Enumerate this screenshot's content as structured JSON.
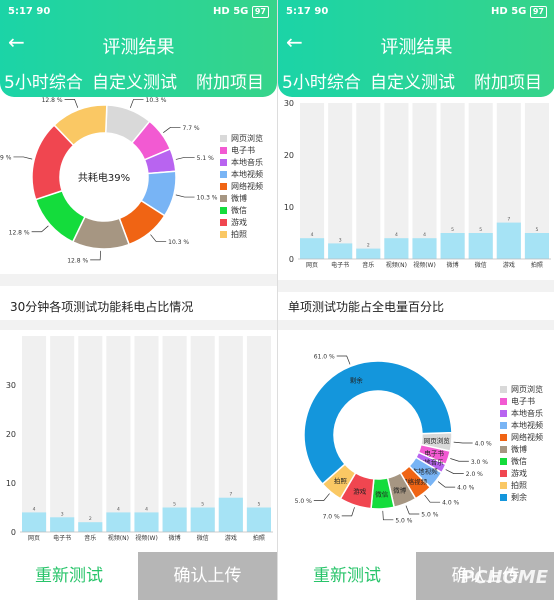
{
  "status": {
    "time": "5:17",
    "network": "90",
    "hd": "HD",
    "signal": "5G",
    "battery": "97"
  },
  "header": {
    "back_icon": "arrow-left-icon",
    "title": "评测结果",
    "tabs": [
      "5小时综合",
      "自定义测试",
      "附加项目"
    ]
  },
  "left": {
    "section_title": "30分钟各项测试功能耗电占比情况"
  },
  "right": {
    "section_title": "单项测试功能占全电量百分比"
  },
  "footer": {
    "retest_label": "重新测试",
    "upload_label": "确认上传"
  },
  "watermark": "PCHOME",
  "chart_data": [
    {
      "type": "pie",
      "center_label": "共耗电39%",
      "categories": [
        "网页浏览",
        "电子书",
        "本地音乐",
        "本地视频",
        "网络视频",
        "微博",
        "微信",
        "游戏",
        "拍照"
      ],
      "values": [
        10.3,
        7.7,
        5.1,
        10.3,
        10.3,
        12.8,
        12.8,
        17.9,
        12.8
      ],
      "value_labels": [
        "10.3 %",
        "7.7 %",
        "5.1 %",
        "10.3 %",
        "10.3 %",
        "12.8 %",
        "12.8 %",
        "17.9 %",
        "12.8 %"
      ],
      "colors": [
        "#d9d9d9",
        "#f25ad2",
        "#b864f0",
        "#78b4f5",
        "#f06414",
        "#a69682",
        "#14dc3c",
        "#f04650",
        "#fac864"
      ],
      "legend": "right"
    },
    {
      "type": "bar",
      "categories": [
        "网页",
        "电子书",
        "音乐",
        "视频(N)",
        "视频(W)",
        "微博",
        "微信",
        "游戏",
        "拍照"
      ],
      "values": [
        4,
        3,
        2,
        4,
        4,
        5,
        5,
        7,
        5
      ],
      "ylim": [
        0,
        40
      ],
      "yticks": [
        "0",
        "10",
        "20",
        "30"
      ],
      "bar_color": "#a6e3f5",
      "background_bar_color": "#f0f0f0"
    },
    {
      "type": "bar",
      "categories": [
        "网页",
        "电子书",
        "音乐",
        "视频(N)",
        "视频(W)",
        "微博",
        "微信",
        "游戏",
        "拍照"
      ],
      "values": [
        4,
        3,
        2,
        4,
        4,
        5,
        5,
        7,
        5
      ],
      "ylim": [
        0,
        30
      ],
      "yticks": [
        "0",
        "10",
        "20",
        "30"
      ],
      "bar_color": "#a6e3f5",
      "background_bar_color": "#f0f0f0"
    },
    {
      "type": "pie",
      "categories": [
        "网页浏览",
        "电子书",
        "本地音乐",
        "本地视频",
        "网络视频",
        "微博",
        "微信",
        "游戏",
        "拍照",
        "剩余"
      ],
      "values": [
        4.0,
        3.0,
        2.0,
        4.0,
        4.0,
        5.0,
        5.0,
        7.0,
        5.0,
        61.0
      ],
      "value_labels": [
        "4.0 %",
        "3.0 %",
        "2.0 %",
        "4.0 %",
        "4.0 %",
        "5.0 %",
        "5.0 %",
        "7.0 %",
        "5.0 %",
        "61.0 %"
      ],
      "slice_labels": [
        "网页浏览",
        "电子书",
        "本地音乐",
        "本地视频",
        "网络视频",
        "微博",
        "微信",
        "游戏",
        "拍照",
        "剩余"
      ],
      "colors": [
        "#d9d9d9",
        "#f25ad2",
        "#b864f0",
        "#78b4f5",
        "#f06414",
        "#a69682",
        "#14dc3c",
        "#f04650",
        "#fac864",
        "#1496dc"
      ],
      "legend": "right"
    }
  ]
}
